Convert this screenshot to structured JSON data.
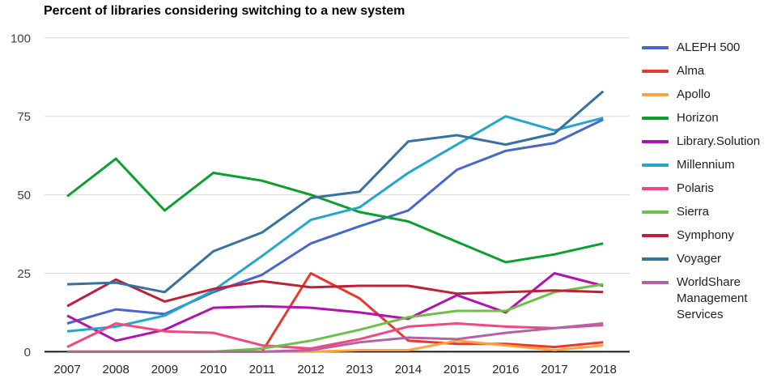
{
  "title": "Percent of libraries considering switching to a new system",
  "axes": {
    "y_ticks": [
      0,
      25,
      50,
      75,
      100
    ],
    "y_tick_color": "#3f3f3f",
    "x_tick_color": "#262626",
    "gridline_color": "#d9d9d9",
    "axis_line_color": "#141414"
  },
  "chart_data": {
    "type": "line",
    "title": "Percent of libraries considering switching to a new system",
    "xlabel": "",
    "ylabel": "",
    "ylim": [
      0,
      100
    ],
    "y_ticks": [
      0,
      25,
      50,
      75,
      100
    ],
    "grid": "horizontal",
    "legend_position": "right",
    "x": [
      2007,
      2008,
      2009,
      2010,
      2011,
      2012,
      2013,
      2014,
      2015,
      2016,
      2017,
      2018
    ],
    "series": [
      {
        "name": "ALEPH 500",
        "color": "#4766d1",
        "values": [
          9,
          13.5,
          12,
          19,
          24.5,
          34.5,
          40,
          45,
          58,
          64,
          66.5,
          74
        ]
      },
      {
        "name": "Alma",
        "color": "#e8392c",
        "values": [
          0,
          0,
          0,
          0,
          0,
          25,
          17,
          3.5,
          2.5,
          2.5,
          1.5,
          3
        ]
      },
      {
        "name": "Apollo",
        "color": "#ffa23e",
        "values": [
          0,
          0,
          0,
          0,
          0,
          0,
          0.5,
          0.5,
          3.5,
          2,
          0.5,
          2
        ]
      },
      {
        "name": "Horizon",
        "color": "#0aa02c",
        "values": [
          49.5,
          61.5,
          45,
          57,
          54.5,
          50,
          44.5,
          41.5,
          35,
          28.5,
          31,
          34.5
        ]
      },
      {
        "name": "Library.Solution",
        "color": "#b312b0",
        "values": [
          11.5,
          3.5,
          7,
          14,
          14.5,
          14,
          12.5,
          10.5,
          18,
          12.5,
          25,
          21
        ]
      },
      {
        "name": "Millennium",
        "color": "#20a8cc",
        "values": [
          6.5,
          8,
          11.5,
          19.5,
          30.5,
          42,
          46,
          57,
          66,
          75,
          70.5,
          74.5
        ]
      },
      {
        "name": "Polaris",
        "color": "#f24780",
        "values": [
          1.5,
          9,
          6.5,
          6,
          2,
          1,
          4,
          8,
          9,
          8,
          7.5,
          8.5
        ]
      },
      {
        "name": "Sierra",
        "color": "#6dc046",
        "values": [
          0,
          0,
          0,
          0,
          1,
          3.5,
          7,
          11,
          13,
          13,
          19,
          21.5
        ]
      },
      {
        "name": "Symphony",
        "color": "#bf2038",
        "values": [
          14.5,
          23,
          16,
          20,
          22.5,
          20.5,
          21,
          21,
          18.5,
          19,
          19.5,
          19
        ]
      },
      {
        "name": "Voyager",
        "color": "#35729d",
        "values": [
          21.5,
          22,
          19,
          32,
          38,
          49,
          51,
          67,
          69,
          66,
          69.5,
          83
        ]
      },
      {
        "name": "WorldShare Management Services",
        "color": "#b263a8",
        "values": [
          0,
          0,
          0,
          0,
          0,
          0.5,
          3,
          4.5,
          4,
          6,
          7.5,
          9
        ]
      }
    ]
  }
}
